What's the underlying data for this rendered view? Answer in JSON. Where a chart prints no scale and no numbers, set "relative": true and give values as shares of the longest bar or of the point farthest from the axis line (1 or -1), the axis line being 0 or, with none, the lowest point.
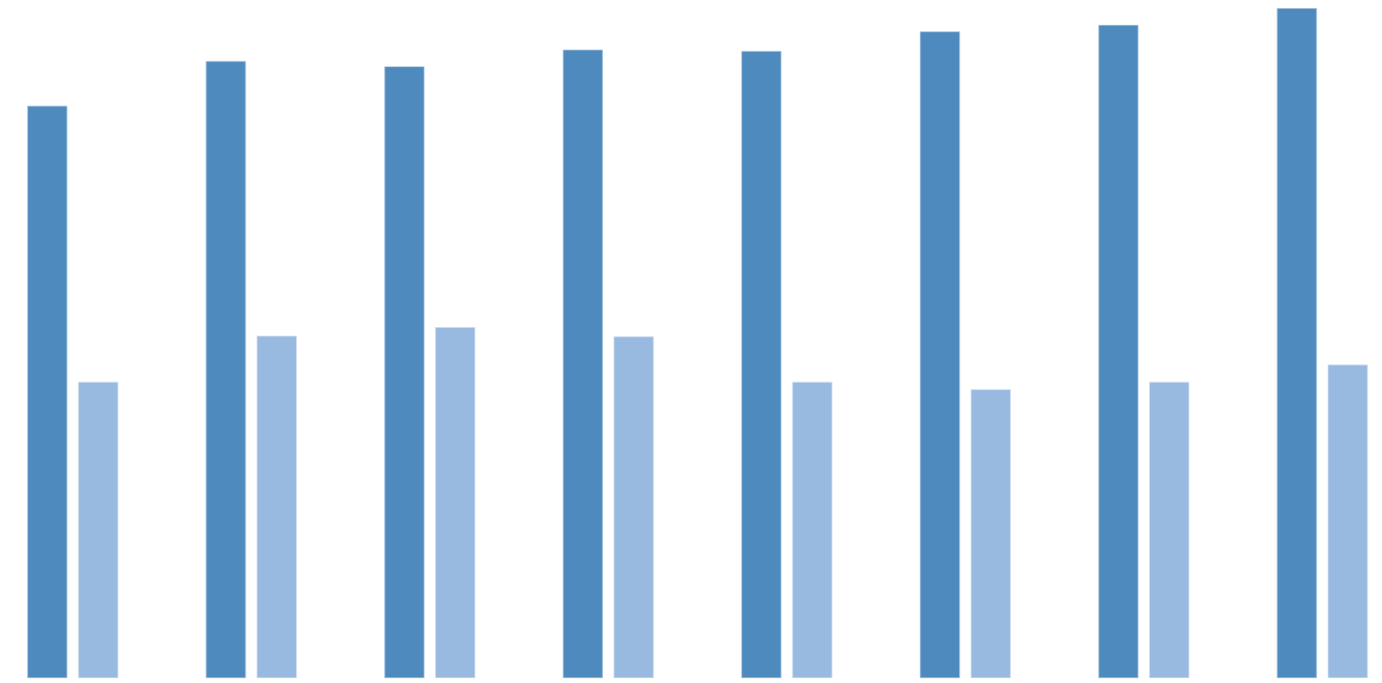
{
  "chart_data": {
    "type": "bar",
    "relative": true,
    "tick_labels": false,
    "categories": [
      null,
      null,
      null,
      null,
      null,
      null,
      null,
      null
    ],
    "series": [
      {
        "color": "#4f8abe",
        "values": [
          0.854,
          0.921,
          0.913,
          0.938,
          0.936,
          0.965,
          0.975,
          1
        ]
      },
      {
        "color": "#98b9e0",
        "values": [
          0.442,
          0.511,
          0.524,
          0.51,
          0.442,
          0.431,
          0.442,
          0.468
        ]
      }
    ]
  }
}
